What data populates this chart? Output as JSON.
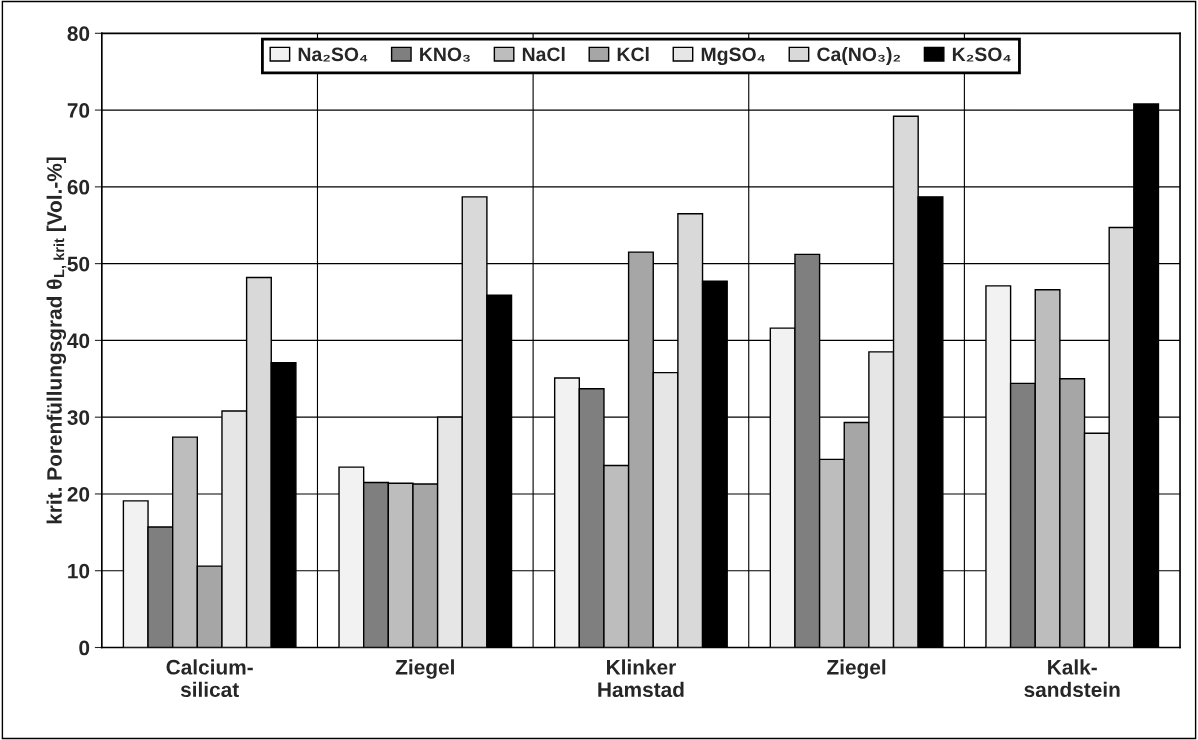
{
  "chart_data": {
    "type": "bar",
    "categories": [
      "Calcium-\nsilicat",
      "Ziegel",
      "Klinker\nHamstad",
      "Ziegel",
      "Kalk-\nsandstein"
    ],
    "ylabel": "krit. Porenfüllungsgrad θ$_{L, krit}$ [Vol.-%]",
    "ylim": [
      0,
      80
    ],
    "yticks": [
      0,
      10,
      20,
      30,
      40,
      50,
      60,
      70,
      80
    ],
    "grid": true,
    "legend": "top",
    "series": [
      {
        "name": "Na₂SO₄",
        "color": "#f2f2f2",
        "values": [
          19.1,
          23.5,
          35.1,
          41.6,
          47.1
        ]
      },
      {
        "name": "KNO₃",
        "color": "#7f7f7f",
        "values": [
          15.7,
          21.5,
          33.7,
          51.2,
          34.4
        ]
      },
      {
        "name": "NaCl",
        "color": "#bdbdbd",
        "values": [
          27.4,
          21.4,
          23.7,
          24.5,
          46.6
        ]
      },
      {
        "name": "KCl",
        "color": "#a6a6a6",
        "values": [
          10.6,
          21.3,
          51.5,
          29.3,
          35.0
        ]
      },
      {
        "name": "MgSO₄",
        "color": "#e6e6e6",
        "values": [
          30.8,
          30.0,
          35.8,
          38.5,
          27.9
        ]
      },
      {
        "name": "Ca(NO₃)₂",
        "color": "#d9d9d9",
        "values": [
          48.2,
          58.7,
          56.5,
          69.2,
          54.7
        ]
      },
      {
        "name": "K₂SO₄",
        "color": "#000000",
        "values": [
          37.1,
          45.9,
          47.7,
          58.7,
          70.8
        ]
      }
    ]
  }
}
